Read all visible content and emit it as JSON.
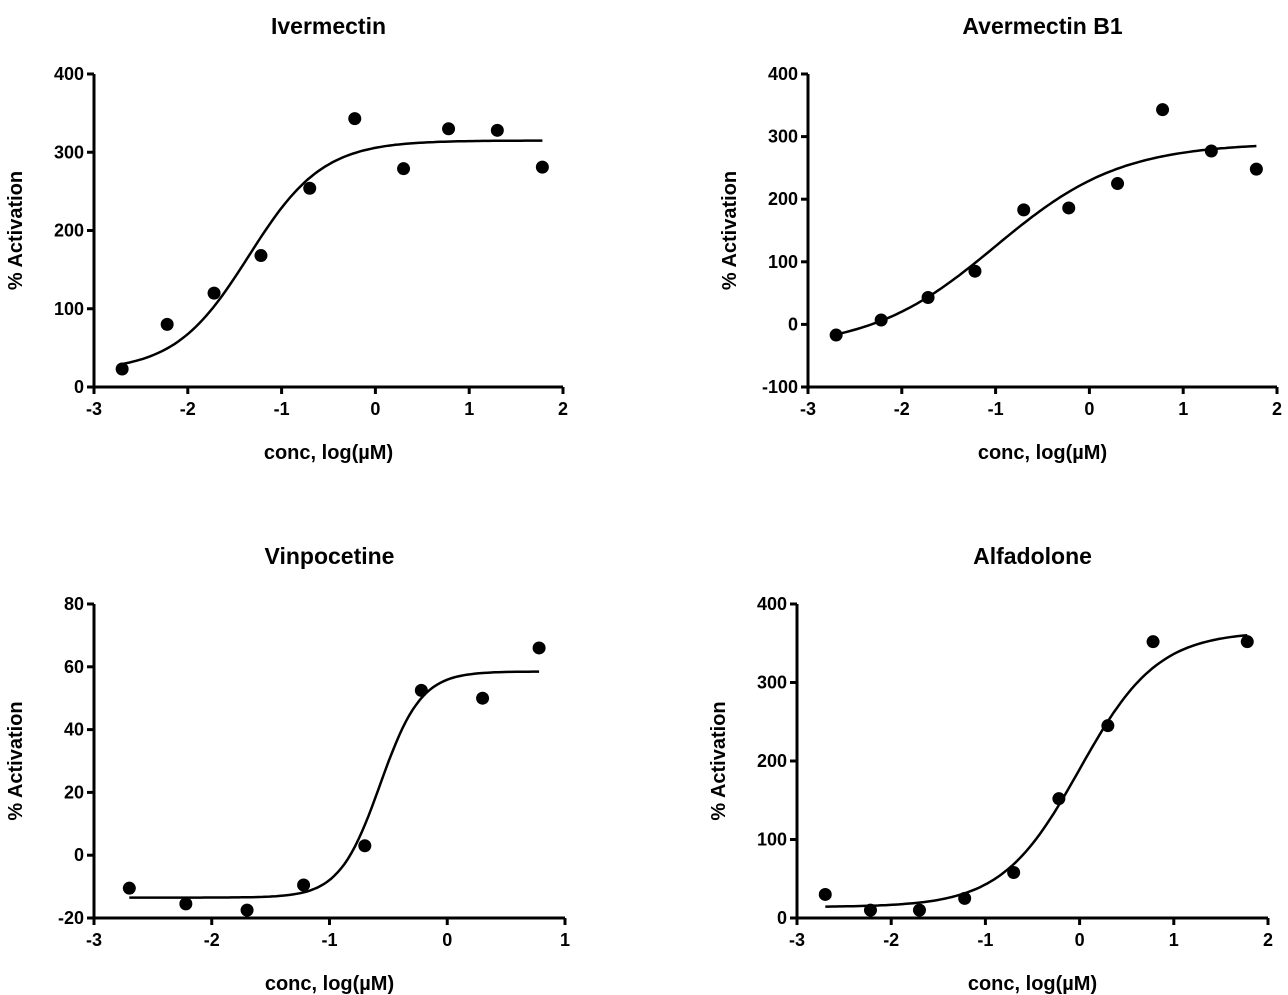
{
  "chart_data": [
    {
      "type": "scatter",
      "title": "Ivermectin",
      "xlabel": "conc, log(µM)",
      "ylabel": "% Activation",
      "xlim": [
        -3,
        2
      ],
      "ylim": [
        0,
        400
      ],
      "xticks": [
        -3,
        -2,
        -1,
        0,
        1,
        2
      ],
      "yticks": [
        0,
        100,
        200,
        300,
        400
      ],
      "grid": false,
      "series": [
        {
          "x": [
            -2.7,
            -2.22,
            -1.72,
            -1.22,
            -0.7,
            -0.22,
            0.3,
            0.78,
            1.3,
            1.78
          ],
          "y": [
            23,
            80,
            120,
            168,
            254,
            343,
            279,
            330,
            328,
            281
          ]
        }
      ],
      "fit": {
        "bottom": 20,
        "top": 315,
        "logec50": -1.35,
        "hill": 1.1,
        "xrange": [
          -2.7,
          1.78
        ]
      }
    },
    {
      "type": "scatter",
      "title": "Avermectin B1",
      "xlabel": "conc, log(µM)",
      "ylabel": "% Activation",
      "xlim": [
        -3,
        2
      ],
      "ylim": [
        -100,
        400
      ],
      "xticks": [
        -3,
        -2,
        -1,
        0,
        1,
        2
      ],
      "yticks": [
        -100,
        0,
        100,
        200,
        300,
        400
      ],
      "grid": false,
      "series": [
        {
          "x": [
            -2.7,
            -2.22,
            -1.72,
            -1.22,
            -0.7,
            -0.22,
            0.3,
            0.78,
            1.3,
            1.78
          ],
          "y": [
            -17,
            7,
            43,
            85,
            183,
            186,
            225,
            343,
            277,
            248
          ]
        }
      ],
      "fit": {
        "bottom": -40,
        "top": 290,
        "logec50": -1.0,
        "hill": 0.65,
        "xrange": [
          -2.7,
          1.78
        ]
      }
    },
    {
      "type": "scatter",
      "title": "Vinpocetine",
      "xlabel": "conc, log(µM)",
      "ylabel": "% Activation",
      "xlim": [
        -3,
        1
      ],
      "ylim": [
        -20,
        80
      ],
      "xticks": [
        -3,
        -2,
        -1,
        0,
        1
      ],
      "yticks": [
        -20,
        0,
        20,
        40,
        60,
        80
      ],
      "grid": false,
      "series": [
        {
          "x": [
            -2.7,
            -2.22,
            -1.7,
            -1.22,
            -0.7,
            -0.22,
            0.3,
            0.78
          ],
          "y": [
            -10.5,
            -15.5,
            -17.5,
            -9.5,
            3,
            52.5,
            50,
            66
          ]
        }
      ],
      "fit": {
        "bottom": -13.5,
        "top": 58.5,
        "logec50": -0.57,
        "hill": 2.5,
        "xrange": [
          -2.7,
          0.78
        ]
      }
    },
    {
      "type": "scatter",
      "title": "Alfadolone",
      "xlabel": "conc, log(µM)",
      "ylabel": "% Activation",
      "xlim": [
        -3,
        2
      ],
      "ylim": [
        0,
        400
      ],
      "xticks": [
        -3,
        -2,
        -1,
        0,
        1,
        2
      ],
      "yticks": [
        0,
        100,
        200,
        300,
        400
      ],
      "grid": false,
      "series": [
        {
          "x": [
            -2.7,
            -2.22,
            -1.7,
            -1.22,
            -0.7,
            -0.22,
            0.3,
            0.78,
            1.78
          ],
          "y": [
            30,
            10,
            10,
            25,
            58,
            152,
            245,
            352,
            352
          ]
        }
      ],
      "fit": {
        "bottom": 14,
        "top": 365,
        "logec50": 0.0,
        "hill": 1.05,
        "xrange": [
          -2.7,
          1.78
        ]
      }
    }
  ]
}
